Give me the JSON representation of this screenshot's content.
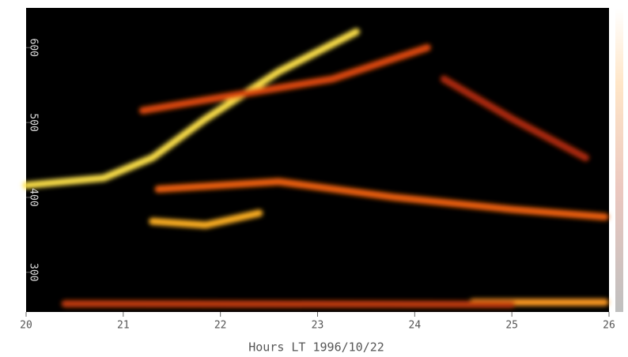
{
  "chart_data": {
    "type": "line",
    "x_label": "Hours LT 1996/10/22",
    "xlim": [
      20,
      26
    ],
    "xticks": [
      20,
      21,
      22,
      23,
      24,
      25,
      26
    ],
    "ylim": [
      247,
      653
    ],
    "yticks": [
      300,
      400,
      500,
      600
    ],
    "background": "#000000",
    "series": [
      {
        "color": "#ffe24a",
        "x": [
          20.0,
          20.8,
          21.3,
          21.85,
          22.6,
          23.4
        ],
        "values": [
          416,
          426,
          453,
          505,
          568,
          621
        ]
      },
      {
        "color": "#ffb020",
        "x": [
          21.3,
          21.85,
          22.4
        ],
        "values": [
          368,
          363,
          379
        ]
      },
      {
        "color": "#f06010",
        "x": [
          21.36,
          22.6,
          23.8,
          25.0,
          25.96
        ],
        "values": [
          411,
          421,
          400,
          384,
          374
        ]
      },
      {
        "color": "#e04a0c",
        "x": [
          21.2,
          22.17,
          23.15,
          24.13
        ],
        "values": [
          516,
          537,
          558,
          600
        ]
      },
      {
        "color": "#b02a08",
        "x": [
          24.3,
          25.0,
          25.76
        ],
        "values": [
          558,
          505,
          453
        ]
      },
      {
        "color": "#ff9a20",
        "x": [
          24.6,
          25.96
        ],
        "values": [
          260,
          260
        ]
      },
      {
        "color": "#c03a08",
        "x": [
          20.4,
          25.0
        ],
        "values": [
          258,
          257
        ]
      }
    ]
  }
}
